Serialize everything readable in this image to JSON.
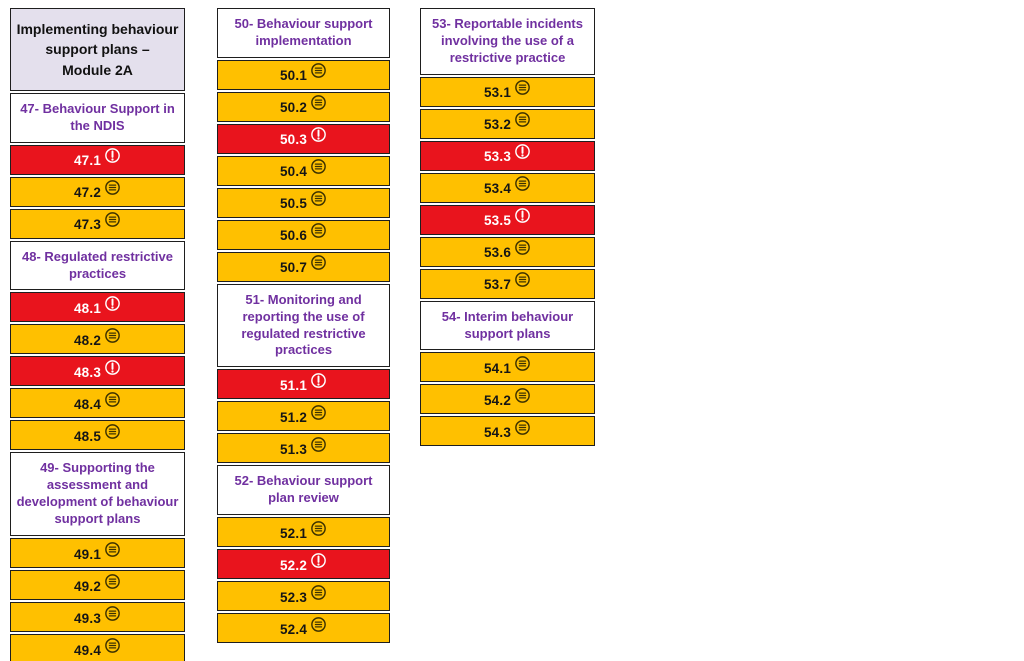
{
  "title": "Implementing behaviour support plans – Module 2A",
  "colors": {
    "amber": "#FFC000",
    "red": "#E9141D",
    "lavender": "#E4E0ED",
    "purple": "#7030A0",
    "border": "#1E1E1E",
    "notes_icon": "#3D3200",
    "alert_icon": "#FFFFFF"
  },
  "icon_legend": {
    "notes": "list-circle-icon",
    "alert": "exclamation-circle-icon"
  },
  "columns": [
    {
      "name": "column-1",
      "blocks": [
        {
          "type": "module",
          "lines": [
            "Implementing behaviour support plans –",
            "Module 2A"
          ]
        },
        {
          "type": "section",
          "id": "47",
          "label": "47- Behaviour Support in the NDIS"
        },
        {
          "type": "item",
          "label": "47.1",
          "icon": "alert"
        },
        {
          "type": "item",
          "label": "47.2",
          "icon": "notes"
        },
        {
          "type": "item",
          "label": "47.3",
          "icon": "notes"
        },
        {
          "type": "section",
          "id": "48",
          "label": "48- Regulated restrictive practices"
        },
        {
          "type": "item",
          "label": "48.1",
          "icon": "alert"
        },
        {
          "type": "item",
          "label": "48.2",
          "icon": "notes"
        },
        {
          "type": "item",
          "label": "48.3",
          "icon": "alert"
        },
        {
          "type": "item",
          "label": "48.4",
          "icon": "notes"
        },
        {
          "type": "item",
          "label": "48.5",
          "icon": "notes"
        },
        {
          "type": "section",
          "id": "49",
          "label": "49- Supporting the assessment and development of behaviour support plans"
        },
        {
          "type": "item",
          "label": "49.1",
          "icon": "notes"
        },
        {
          "type": "item",
          "label": "49.2",
          "icon": "notes"
        },
        {
          "type": "item",
          "label": "49.3",
          "icon": "notes"
        },
        {
          "type": "item",
          "label": "49.4",
          "icon": "notes"
        }
      ]
    },
    {
      "name": "column-2",
      "blocks": [
        {
          "type": "section",
          "id": "50",
          "label": "50- Behaviour support implementation"
        },
        {
          "type": "item",
          "label": "50.1",
          "icon": "notes"
        },
        {
          "type": "item",
          "label": "50.2",
          "icon": "notes"
        },
        {
          "type": "item",
          "label": "50.3",
          "icon": "alert"
        },
        {
          "type": "item",
          "label": "50.4",
          "icon": "notes"
        },
        {
          "type": "item",
          "label": "50.5",
          "icon": "notes"
        },
        {
          "type": "item",
          "label": "50.6",
          "icon": "notes"
        },
        {
          "type": "item",
          "label": "50.7",
          "icon": "notes"
        },
        {
          "type": "section",
          "id": "51",
          "label": "51- Monitoring and reporting the use of regulated restrictive practices"
        },
        {
          "type": "item",
          "label": "51.1",
          "icon": "alert"
        },
        {
          "type": "item",
          "label": "51.2",
          "icon": "notes"
        },
        {
          "type": "item",
          "label": "51.3",
          "icon": "notes"
        },
        {
          "type": "section",
          "id": "52",
          "label": "52- Behaviour support plan review"
        },
        {
          "type": "item",
          "label": "52.1",
          "icon": "notes"
        },
        {
          "type": "item",
          "label": "52.2",
          "icon": "alert"
        },
        {
          "type": "item",
          "label": "52.3",
          "icon": "notes"
        },
        {
          "type": "item",
          "label": "52.4",
          "icon": "notes"
        }
      ]
    },
    {
      "name": "column-3",
      "blocks": [
        {
          "type": "section",
          "id": "53",
          "label": "53- Reportable incidents involving the use of a restrictive practice"
        },
        {
          "type": "item",
          "label": "53.1",
          "icon": "notes"
        },
        {
          "type": "item",
          "label": "53.2",
          "icon": "notes"
        },
        {
          "type": "item",
          "label": "53.3",
          "icon": "alert"
        },
        {
          "type": "item",
          "label": "53.4",
          "icon": "notes"
        },
        {
          "type": "item",
          "label": "53.5",
          "icon": "alert"
        },
        {
          "type": "item",
          "label": "53.6",
          "icon": "notes"
        },
        {
          "type": "item",
          "label": "53.7",
          "icon": "notes"
        },
        {
          "type": "section",
          "id": "54",
          "label": "54- Interim behaviour support plans"
        },
        {
          "type": "item",
          "label": "54.1",
          "icon": "notes"
        },
        {
          "type": "item",
          "label": "54.2",
          "icon": "notes"
        },
        {
          "type": "item",
          "label": "54.3",
          "icon": "notes"
        }
      ]
    }
  ]
}
